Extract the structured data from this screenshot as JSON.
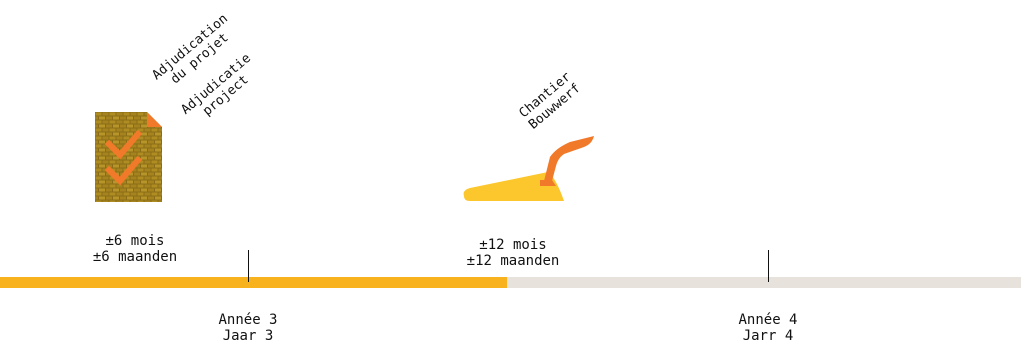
{
  "milestones": [
    {
      "label_fr": "Adjudication du projet",
      "label_fr_lines": [
        "Adjudication",
        "du projet"
      ],
      "label_nl_lines": [
        "Adjudicatie",
        "project"
      ],
      "icon": "document-check-icon"
    },
    {
      "label_lines": [
        "Chantier",
        "Bouwwerf"
      ],
      "icon": "trowel-icon"
    }
  ],
  "durations": [
    {
      "fr": "±6 mois",
      "nl": "±6 maanden"
    },
    {
      "fr": "±12 mois",
      "nl": "±12 maanden"
    }
  ],
  "years": [
    {
      "fr": "Année 3",
      "nl": "Jaar 3"
    },
    {
      "fr": "Année 4",
      "nl": "Jarr 4"
    }
  ],
  "progress": {
    "filled_fraction": 0.497
  },
  "colors": {
    "accent": "#f8b21d",
    "accent_dark": "#f07a2a",
    "track": "#e7e2dc",
    "trowel_blade": "#fcc72c",
    "brick": "#9a7a1a"
  }
}
